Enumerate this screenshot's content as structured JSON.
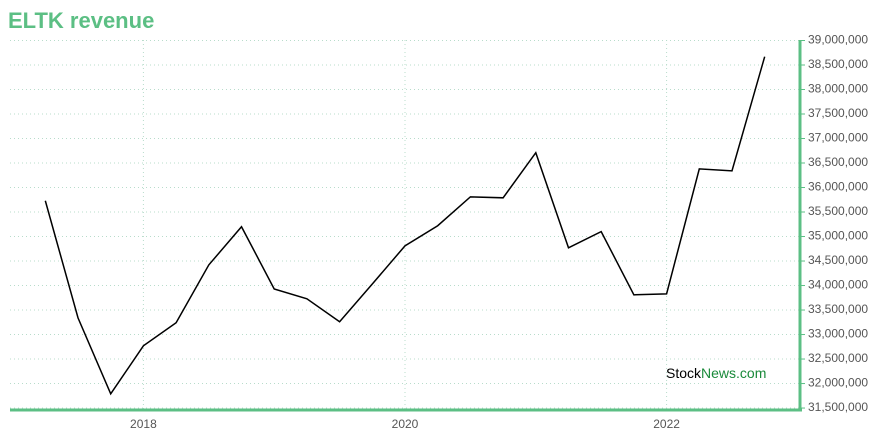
{
  "chart_data": {
    "type": "line",
    "title": "ELTK revenue",
    "watermark": {
      "first": "Stock",
      "second": "News.com"
    },
    "x": [
      2017.25,
      2017.5,
      2017.75,
      2018,
      2018.25,
      2018.5,
      2018.75,
      2019,
      2019.25,
      2019.5,
      2019.75,
      2020,
      2020.25,
      2020.5,
      2020.75,
      2021,
      2021.25,
      2021.5,
      2021.75,
      2022,
      2022.25,
      2022.5,
      2022.75
    ],
    "series": [
      {
        "color": "#000000",
        "values": [
          35730000,
          33340000,
          31790000,
          32770000,
          33240000,
          34420000,
          35200000,
          33930000,
          33730000,
          33260000,
          34030000,
          34810000,
          35220000,
          35810000,
          35790000,
          36710000,
          34770000,
          35100000,
          33810000,
          33830000,
          36380000,
          36340000,
          38670000
        ]
      }
    ],
    "xlim": [
      2016.98,
      2023.02
    ],
    "xticks": [
      2018,
      2020,
      2022
    ],
    "ylim": [
      31460000,
      39010000
    ],
    "yticks": [
      {
        "value": 31500000,
        "label": "31,500,000"
      },
      {
        "value": 32000000,
        "label": "32,000,000"
      },
      {
        "value": 32500000,
        "label": "32,500,000"
      },
      {
        "value": 33000000,
        "label": "33,000,000"
      },
      {
        "value": 33500000,
        "label": "33,500,000"
      },
      {
        "value": 34000000,
        "label": "34,000,000"
      },
      {
        "value": 34500000,
        "label": "34,500,000"
      },
      {
        "value": 35000000,
        "label": "35,000,000"
      },
      {
        "value": 35500000,
        "label": "35,500,000"
      },
      {
        "value": 36000000,
        "label": "36,000,000"
      },
      {
        "value": 36500000,
        "label": "36,500,000"
      },
      {
        "value": 37000000,
        "label": "37,000,000"
      },
      {
        "value": 37500000,
        "label": "37,500,000"
      },
      {
        "value": 38000000,
        "label": "38,000,000"
      },
      {
        "value": 38500000,
        "label": "38,500,000"
      },
      {
        "value": 39000000,
        "label": "39,000,000"
      }
    ],
    "grid": true,
    "axis_color": "#5cbf84"
  }
}
